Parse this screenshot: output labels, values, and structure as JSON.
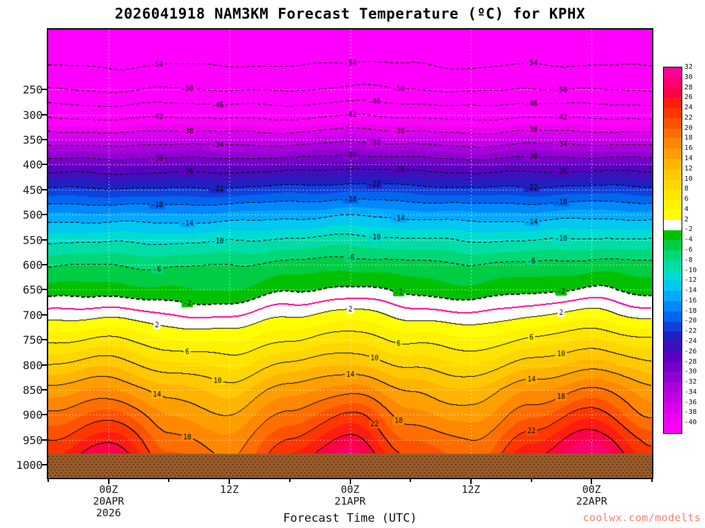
{
  "title": "2026041918 NAM3KM Forecast Temperature (ºC) for KPHX",
  "xlabel": "Forecast Time (UTC)",
  "watermark": "coolwx.com/modelts",
  "watermark_color": "#fa8072",
  "chart_data": {
    "type": "heatmap",
    "title": "2026041918 NAM3KM Forecast Temperature (ºC) for KPHX",
    "xlabel": "Forecast Time (UTC)",
    "ylabel": "Pressure (hPa)",
    "x_range_hours": [
      0,
      60
    ],
    "y_range": [
      130,
      1026
    ],
    "y_ticks": [
      250,
      300,
      350,
      400,
      450,
      500,
      550,
      600,
      650,
      700,
      750,
      800,
      850,
      900,
      950,
      1000
    ],
    "x_ticks": [
      {
        "hour": 6,
        "label": "00Z",
        "sub": [
          "20APR",
          "2026"
        ]
      },
      {
        "hour": 18,
        "label": "12Z",
        "sub": []
      },
      {
        "hour": 30,
        "label": "00Z",
        "sub": [
          "21APR"
        ]
      },
      {
        "hour": 42,
        "label": "12Z",
        "sub": []
      },
      {
        "hour": 54,
        "label": "00Z",
        "sub": [
          "22APR"
        ]
      }
    ],
    "x_hours": [
      0,
      6,
      12,
      18,
      24,
      30,
      36,
      42,
      48,
      54,
      60
    ],
    "pressure_levels_hpa": [
      130,
      200,
      250,
      300,
      350,
      400,
      450,
      500,
      550,
      600,
      650,
      700,
      750,
      800,
      850,
      900,
      950,
      975,
      1026
    ],
    "temps_c": [
      [
        -59,
        -59.3,
        -58.8,
        -59,
        -59.2,
        -58.7,
        -59,
        -59.3,
        -58.8,
        -59,
        -59.2
      ],
      [
        -54.2,
        -54.6,
        -53.8,
        -54,
        -54.4,
        -53.6,
        -54,
        -54.5,
        -53.8,
        -54.1,
        -54.3
      ],
      [
        -50,
        -50.5,
        -49.6,
        -50,
        -50.4,
        -49.4,
        -50,
        -50.5,
        -49.6,
        -50,
        -50.3
      ],
      [
        -43,
        -43.6,
        -42.5,
        -43,
        -43.5,
        -42.3,
        -43,
        -43.6,
        -42.5,
        -43,
        -43.4
      ],
      [
        -35.5,
        -36.1,
        -35,
        -35.5,
        -35.9,
        -34.8,
        -35.5,
        -36.1,
        -35,
        -35.5,
        -35.9
      ],
      [
        -28.2,
        -28.4,
        -27.9,
        -28,
        -27.8,
        -27.2,
        -27.7,
        -28.2,
        -27.6,
        -27.6,
        -28
      ],
      [
        -21.6,
        -21.6,
        -21.5,
        -21.3,
        -20.9,
        -20.6,
        -20.9,
        -21.3,
        -21.1,
        -20.9,
        -21.2
      ],
      [
        -15.6,
        -15.5,
        -15.5,
        -15.3,
        -14.9,
        -14.4,
        -14.9,
        -15.3,
        -15.1,
        -14.8,
        -15.1
      ],
      [
        -10.6,
        -10.5,
        -10.5,
        -10.2,
        -9.7,
        -9.2,
        -9.7,
        -10.2,
        -10,
        -9.6,
        -10
      ],
      [
        -6.3,
        -6.1,
        -6.2,
        -5.9,
        -5.3,
        -4.8,
        -5.4,
        -5.7,
        -5.3,
        -4.9,
        -5.4
      ],
      [
        -3.4,
        -3,
        -3.7,
        -3.8,
        -2.4,
        -1.5,
        -2.7,
        -3.4,
        -2.3,
        -1.6,
        -2.9
      ],
      [
        0.7,
        1.5,
        0.1,
        -0.2,
        1.7,
        2.8,
        1.2,
        0.3,
        1.9,
        3,
        1.1
      ],
      [
        5.3,
        6.5,
        4.4,
        3.7,
        5.9,
        7.3,
        5.4,
        4.4,
        6.5,
        8.5,
        6.1
      ],
      [
        10,
        11.6,
        8.8,
        7.6,
        10.6,
        12.2,
        9.3,
        8.3,
        11.2,
        13.2,
        10.3
      ],
      [
        14.5,
        16.5,
        13,
        11.5,
        15,
        17.2,
        13.6,
        12.3,
        16,
        18.4,
        14.8
      ],
      [
        18.2,
        21.2,
        16.1,
        14.2,
        18.6,
        22.3,
        16.8,
        14.9,
        19.8,
        23.2,
        17.6
      ],
      [
        21.9,
        25.5,
        19.2,
        16.6,
        22.3,
        26.5,
        19.9,
        17.9,
        23.6,
        28,
        21.3
      ],
      [
        23.5,
        27.5,
        20.5,
        17.5,
        24,
        28.5,
        21.3,
        19,
        25.3,
        30,
        22.3
      ],
      [
        26.1,
        30.5,
        22.8,
        19.5,
        26.6,
        31.2,
        23.6,
        21.2,
        27.9,
        32.7,
        24.6
      ]
    ],
    "ground_pressure_hpa": 978,
    "ground_color": "#995c2a",
    "ground_dot_color": "#4a2a10",
    "levels_c": [
      -40,
      -38,
      -36,
      -34,
      -32,
      -30,
      -28,
      -26,
      -24,
      -22,
      -20,
      -18,
      -16,
      -14,
      -12,
      -10,
      -8,
      -6,
      -4,
      -2,
      2,
      4,
      6,
      8,
      10,
      12,
      14,
      16,
      18,
      20,
      22,
      24,
      26,
      28,
      30,
      32
    ],
    "palette": [
      "#ff00ff",
      "#ee00ee",
      "#d800ee",
      "#c200e6",
      "#aa00dd",
      "#9000d0",
      "#7600c8",
      "#5a00c0",
      "#3c10bb",
      "#2020c0",
      "#1040dd",
      "#0066ee",
      "#0088ff",
      "#00aaff",
      "#00c8f0",
      "#00ddd0",
      "#00dda8",
      "#00d878",
      "#00cc44",
      "#00c000",
      "#ffffff",
      "#ffff00",
      "#fff200",
      "#ffe400",
      "#ffd600",
      "#ffc800",
      "#ffb400",
      "#ff9e00",
      "#ff8800",
      "#ff6e00",
      "#ff5200",
      "#ff3600",
      "#ff1c10",
      "#ff0048",
      "#ff0070",
      "#ff0094",
      "#ff00b4"
    ],
    "colorbar_labels": [
      32,
      30,
      28,
      26,
      24,
      22,
      20,
      18,
      16,
      14,
      12,
      10,
      8,
      6,
      4,
      2,
      -2,
      -4,
      -6,
      -8,
      -10,
      -12,
      -14,
      -16,
      -18,
      -20,
      -22,
      -24,
      -26,
      -28,
      -30,
      -32,
      -34,
      -36,
      -38,
      -40
    ],
    "contour_interval_c": 4,
    "contour_levels": [
      -54,
      -50,
      -46,
      -42,
      -38,
      -34,
      -30,
      -26,
      -22,
      -18,
      -14,
      -10,
      -6,
      -2,
      0,
      2,
      6,
      10,
      14,
      18,
      22,
      26
    ],
    "contour_labels": [
      "-54",
      "-50",
      "-46",
      "-42",
      "-38",
      "-34",
      "-30",
      "-26",
      "-22",
      "-18",
      "-14",
      "-10",
      "-6",
      "-2",
      "",
      "2",
      "6",
      "10",
      "14",
      "18",
      "22",
      ""
    ],
    "zero_line_color": "#ff0090",
    "grid": "dotted-white",
    "legend_position": "right"
  }
}
